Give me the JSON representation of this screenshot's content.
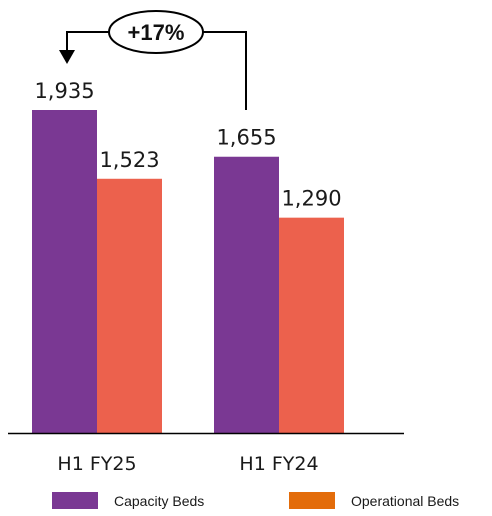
{
  "chart_data": {
    "type": "bar",
    "categories": [
      "H1 FY25",
      "H1 FY24"
    ],
    "series": [
      {
        "name": "Capacity Beds",
        "values": [
          1935,
          1655
        ],
        "labels": [
          "1,935",
          "1,655"
        ],
        "color": "#7a3893"
      },
      {
        "name": "Operational Beds",
        "values": [
          1523,
          1290
        ],
        "labels": [
          "1,523",
          "1,290"
        ],
        "color": "#ec614d"
      }
    ],
    "legend_colors": [
      "#7a3893",
      "#e36c0a"
    ],
    "annotation": "+17%",
    "legend_position": "bottom",
    "grid": false,
    "ylim": [
      0,
      2000
    ]
  }
}
